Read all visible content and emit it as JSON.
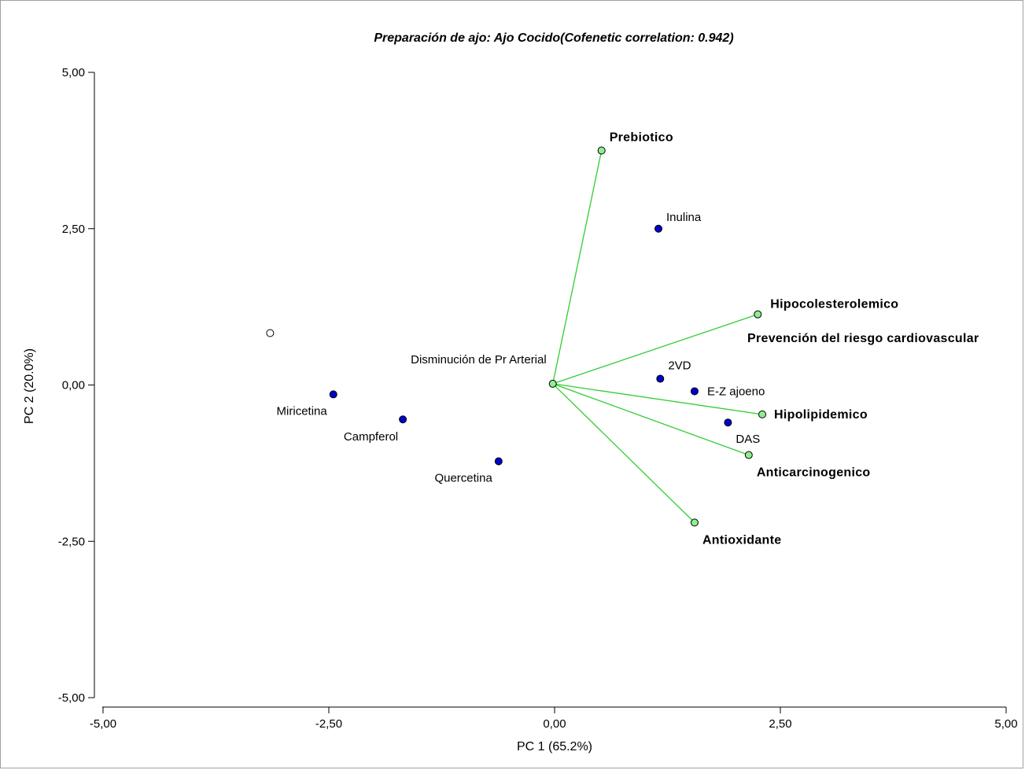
{
  "chart_data": {
    "type": "scatter",
    "subtype": "biplot",
    "title": "Preparación de ajo: Ajo Cocido(Cofenetic correlation: 0.942)",
    "xlabel": "PC 1 (65.2%)",
    "ylabel": "PC 2 (20.0%)",
    "xlim": [
      -5,
      5
    ],
    "ylim": [
      -5,
      5
    ],
    "xticks": [
      -5,
      -2.5,
      0,
      2.5,
      5
    ],
    "yticks": [
      -5,
      -2.5,
      0,
      2.5,
      5
    ],
    "xtick_labels": [
      "-5,00",
      "-2,50",
      "0,00",
      "2,50",
      "5,00"
    ],
    "ytick_labels": [
      "-5,00",
      "-2,50",
      "0,00",
      "2,50",
      "5,00"
    ],
    "grid": false,
    "colors": {
      "observation_fill": "#0000cc",
      "variable_fill": "#90ee90",
      "vector_line": "#33cc33",
      "hollow_fill": "#ffffff"
    },
    "observations": [
      {
        "label": "Inulina",
        "x": 1.15,
        "y": 2.5
      },
      {
        "label": "2VD",
        "x": 1.17,
        "y": 0.1
      },
      {
        "label": "E-Z ajoeno",
        "x": 1.55,
        "y": -0.1
      },
      {
        "label": "DAS",
        "x": 1.92,
        "y": -0.6
      },
      {
        "label": "Miricetina",
        "x": -2.45,
        "y": -0.15
      },
      {
        "label": "Campferol",
        "x": -1.68,
        "y": -0.55
      },
      {
        "label": "Quercetina",
        "x": -0.62,
        "y": -1.22
      }
    ],
    "variables": [
      {
        "label": "Prebiotico",
        "x": 0.52,
        "y": 3.75
      },
      {
        "label": "Hipocolesterolemico",
        "x": 2.25,
        "y": 1.13
      },
      {
        "label": "Hipolipidemico",
        "x": 2.3,
        "y": -0.47
      },
      {
        "label": "Anticarcinogenico",
        "x": 2.15,
        "y": -1.12
      },
      {
        "label": "Antioxidante",
        "x": 1.55,
        "y": -2.2
      },
      {
        "label": "Disminución de Pr Arterial",
        "x": -0.02,
        "y": 0.02
      },
      {
        "label": "Prevención del riesgo cardiovascular",
        "x": -3.15,
        "y": 0.83
      }
    ]
  }
}
